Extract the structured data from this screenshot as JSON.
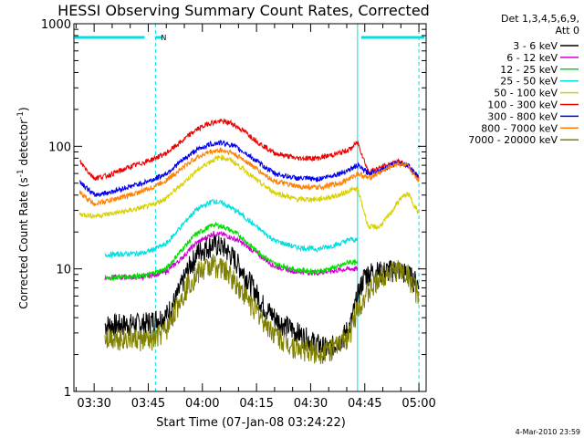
{
  "chart_data": {
    "type": "line",
    "title": "HESSI Observing Summary Count Rates, Corrected",
    "xlabel": "Start Time (07-Jan-08 03:24:22)",
    "ylabel_main": "Corrected Count Rate (s",
    "ylabel_sup1": "-1",
    "ylabel_mid": " detector",
    "ylabel_sup2": "-1",
    "ylabel_end": ")",
    "y_scale": "log",
    "ylim": [
      1,
      1000
    ],
    "xlim_min": [
      204.4,
      302
    ],
    "y_ticks": [
      {
        "value": 1,
        "label": "1"
      },
      {
        "value": 10,
        "label": "10"
      },
      {
        "value": 100,
        "label": "100"
      },
      {
        "value": 1000,
        "label": "1000"
      }
    ],
    "x_ticks": [
      {
        "value": 210,
        "label": "03:30"
      },
      {
        "value": 225,
        "label": "03:45"
      },
      {
        "value": 240,
        "label": "04:00"
      },
      {
        "value": 255,
        "label": "04:15"
      },
      {
        "value": 270,
        "label": "04:30"
      },
      {
        "value": 285,
        "label": "04:45"
      },
      {
        "value": 300,
        "label": "05:00"
      }
    ],
    "legend_header": [
      "Det 1,3,4,5,6,9,",
      "Att 0"
    ],
    "legend_placement": "right",
    "series": [
      {
        "name": "3 - 6 keV",
        "color": "#000000",
        "points": [
          [
            213,
            3.5
          ],
          [
            224,
            3.6
          ],
          [
            230,
            4.2
          ],
          [
            233,
            6
          ],
          [
            236,
            10
          ],
          [
            239,
            14
          ],
          [
            243,
            16
          ],
          [
            246,
            15
          ],
          [
            249,
            12
          ],
          [
            253,
            8
          ],
          [
            257,
            5
          ],
          [
            261,
            3.8
          ],
          [
            265,
            3.2
          ],
          [
            270,
            2.6
          ],
          [
            275,
            2.2
          ],
          [
            279,
            2.8
          ],
          [
            281,
            3.5
          ],
          [
            283,
            6
          ],
          [
            285,
            9
          ],
          [
            287,
            9.5
          ],
          [
            290,
            9.5
          ],
          [
            294,
            10
          ],
          [
            297,
            9
          ],
          [
            300,
            7.5
          ]
        ]
      },
      {
        "name": "6 - 12 keV",
        "color": "#d000d0",
        "points": [
          [
            213,
            8.5
          ],
          [
            224,
            8.6
          ],
          [
            230,
            9.5
          ],
          [
            234,
            12
          ],
          [
            238,
            16
          ],
          [
            243,
            19.5
          ],
          [
            246,
            19
          ],
          [
            250,
            17
          ],
          [
            255,
            13.5
          ],
          [
            260,
            10.5
          ],
          [
            266,
            9.5
          ],
          [
            272,
            9.3
          ],
          [
            278,
            9.8
          ],
          [
            281,
            10
          ],
          [
            283,
            10
          ]
        ]
      },
      {
        "name": "12 - 25 keV",
        "color": "#00dd00",
        "points": [
          [
            213,
            8.5
          ],
          [
            224,
            8.8
          ],
          [
            230,
            10
          ],
          [
            234,
            14
          ],
          [
            238,
            19
          ],
          [
            243,
            23
          ],
          [
            246,
            22
          ],
          [
            250,
            19
          ],
          [
            255,
            14
          ],
          [
            260,
            11
          ],
          [
            266,
            9.8
          ],
          [
            272,
            9.5
          ],
          [
            278,
            10.5
          ],
          [
            281,
            11.5
          ],
          [
            283,
            11
          ]
        ]
      },
      {
        "name": "25 - 50 keV",
        "color": "#00e0e0",
        "points": [
          [
            213,
            13
          ],
          [
            224,
            13.5
          ],
          [
            230,
            16
          ],
          [
            234,
            22
          ],
          [
            238,
            30
          ],
          [
            243,
            36
          ],
          [
            246,
            34
          ],
          [
            250,
            29
          ],
          [
            255,
            22
          ],
          [
            260,
            17
          ],
          [
            266,
            15
          ],
          [
            272,
            14.5
          ],
          [
            278,
            16
          ],
          [
            281,
            17.5
          ],
          [
            283,
            17
          ]
        ]
      },
      {
        "name": "50 - 100 keV",
        "color": "#d8d000",
        "points": [
          [
            206,
            28
          ],
          [
            210,
            27
          ],
          [
            214,
            28
          ],
          [
            220,
            30
          ],
          [
            226,
            33
          ],
          [
            230,
            38
          ],
          [
            234,
            48
          ],
          [
            238,
            62
          ],
          [
            242,
            75
          ],
          [
            245,
            82
          ],
          [
            248,
            77
          ],
          [
            252,
            63
          ],
          [
            256,
            50
          ],
          [
            260,
            42
          ],
          [
            266,
            37
          ],
          [
            272,
            37
          ],
          [
            278,
            40
          ],
          [
            281,
            44
          ],
          [
            283,
            45
          ],
          [
            286,
            22
          ],
          [
            289,
            22
          ],
          [
            292,
            28
          ],
          [
            295,
            38
          ],
          [
            297,
            41
          ],
          [
            300,
            28
          ]
        ]
      },
      {
        "name": "100 - 300 keV",
        "color": "#ee0000",
        "points": [
          [
            206,
            75
          ],
          [
            210,
            55
          ],
          [
            214,
            58
          ],
          [
            220,
            68
          ],
          [
            226,
            78
          ],
          [
            230,
            88
          ],
          [
            234,
            108
          ],
          [
            238,
            135
          ],
          [
            242,
            155
          ],
          [
            245,
            160
          ],
          [
            248,
            155
          ],
          [
            252,
            130
          ],
          [
            256,
            105
          ],
          [
            260,
            88
          ],
          [
            266,
            80
          ],
          [
            272,
            80
          ],
          [
            278,
            88
          ],
          [
            281,
            95
          ],
          [
            283,
            108
          ],
          [
            286,
            62
          ],
          [
            290,
            68
          ],
          [
            294,
            75
          ],
          [
            297,
            70
          ],
          [
            300,
            55
          ]
        ]
      },
      {
        "name": "300 - 800 keV",
        "color": "#0000ee",
        "points": [
          [
            206,
            52
          ],
          [
            210,
            40
          ],
          [
            214,
            42
          ],
          [
            220,
            47
          ],
          [
            226,
            53
          ],
          [
            230,
            60
          ],
          [
            234,
            75
          ],
          [
            238,
            92
          ],
          [
            242,
            104
          ],
          [
            245,
            107
          ],
          [
            248,
            103
          ],
          [
            252,
            88
          ],
          [
            256,
            72
          ],
          [
            260,
            60
          ],
          [
            266,
            55
          ],
          [
            272,
            54
          ],
          [
            278,
            60
          ],
          [
            281,
            65
          ],
          [
            283,
            70
          ],
          [
            286,
            60
          ],
          [
            290,
            65
          ],
          [
            294,
            74
          ],
          [
            297,
            70
          ],
          [
            300,
            55
          ]
        ]
      },
      {
        "name": "800 - 7000 keV",
        "color": "#ff8000",
        "points": [
          [
            206,
            42
          ],
          [
            210,
            34
          ],
          [
            214,
            36
          ],
          [
            220,
            40
          ],
          [
            226,
            46
          ],
          [
            230,
            53
          ],
          [
            234,
            65
          ],
          [
            238,
            80
          ],
          [
            242,
            90
          ],
          [
            245,
            93
          ],
          [
            248,
            89
          ],
          [
            252,
            76
          ],
          [
            256,
            62
          ],
          [
            260,
            52
          ],
          [
            266,
            47
          ],
          [
            272,
            46
          ],
          [
            278,
            50
          ],
          [
            281,
            55
          ],
          [
            283,
            60
          ],
          [
            286,
            55
          ],
          [
            290,
            63
          ],
          [
            294,
            73
          ],
          [
            297,
            68
          ],
          [
            300,
            52
          ]
        ]
      },
      {
        "name": "7000 - 20000 keV",
        "color": "#808000",
        "points": [
          [
            213,
            2.8
          ],
          [
            222,
            2.7
          ],
          [
            226,
            2.6
          ],
          [
            230,
            3.2
          ],
          [
            233,
            5
          ],
          [
            236,
            7.5
          ],
          [
            239,
            9.5
          ],
          [
            243,
            11
          ],
          [
            246,
            10
          ],
          [
            249,
            8
          ],
          [
            253,
            5.5
          ],
          [
            257,
            3.8
          ],
          [
            261,
            2.8
          ],
          [
            266,
            2.3
          ],
          [
            272,
            2.1
          ],
          [
            277,
            2.3
          ],
          [
            281,
            3
          ],
          [
            283,
            5
          ],
          [
            285,
            6
          ],
          [
            287,
            7
          ],
          [
            290,
            9
          ],
          [
            294,
            10
          ],
          [
            297,
            9
          ],
          [
            300,
            6
          ]
        ]
      }
    ],
    "annotation_label": "N",
    "date_stamp": "4-Mar-2010 23:59"
  }
}
